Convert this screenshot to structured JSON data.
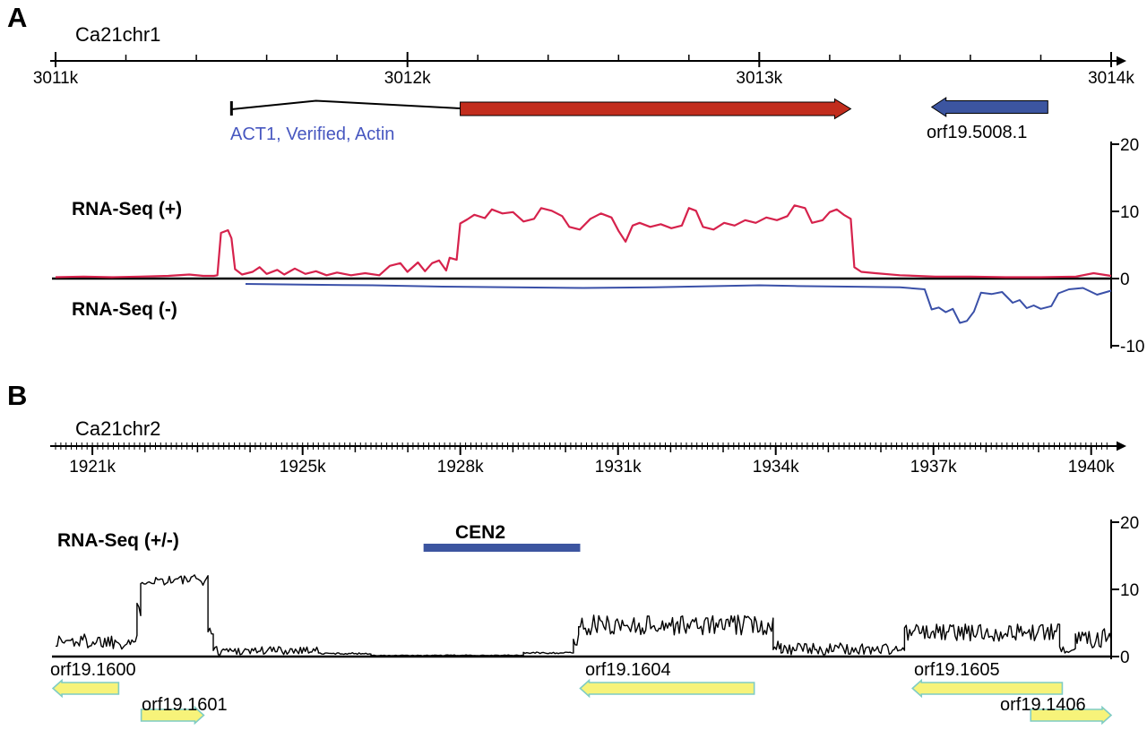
{
  "figure": {
    "panel_letters": [
      "A",
      "B"
    ],
    "background": "#ffffff"
  },
  "chart_data": [
    {
      "id": "panel_a",
      "type": "line",
      "title": "Ca21chr1",
      "x_unit": "kb",
      "xlim": [
        3011,
        3014
      ],
      "ylim": [
        -10,
        20
      ],
      "minor_tick_step_kb": 0.2,
      "x_ticks": [
        {
          "pos": 3011,
          "label": "3011k"
        },
        {
          "pos": 3012,
          "label": "3012k"
        },
        {
          "pos": 3013,
          "label": "3013k"
        },
        {
          "pos": 3014,
          "label": "3014k"
        }
      ],
      "y_ticks": [
        {
          "pos": 20,
          "label": "20"
        },
        {
          "pos": 10,
          "label": "10"
        },
        {
          "pos": 0,
          "label": "0"
        },
        {
          "pos": -10,
          "label": "-10"
        }
      ],
      "series": [
        {
          "name": "RNA-Seq (+)",
          "color": "#d6224c",
          "points": [
            [
              3011.0,
              0.2
            ],
            [
              3011.08,
              0.3
            ],
            [
              3011.16,
              0.2
            ],
            [
              3011.24,
              0.3
            ],
            [
              3011.32,
              0.4
            ],
            [
              3011.38,
              0.6
            ],
            [
              3011.42,
              0.4
            ],
            [
              3011.45,
              0.4
            ],
            [
              3011.46,
              0.5
            ],
            [
              3011.47,
              6.8
            ],
            [
              3011.49,
              7.2
            ],
            [
              3011.5,
              6.0
            ],
            [
              3011.51,
              1.4
            ],
            [
              3011.53,
              0.6
            ],
            [
              3011.56,
              1.0
            ],
            [
              3011.58,
              1.7
            ],
            [
              3011.6,
              0.7
            ],
            [
              3011.63,
              1.3
            ],
            [
              3011.65,
              0.6
            ],
            [
              3011.68,
              1.5
            ],
            [
              3011.71,
              0.7
            ],
            [
              3011.74,
              1.1
            ],
            [
              3011.77,
              0.5
            ],
            [
              3011.8,
              0.9
            ],
            [
              3011.84,
              0.5
            ],
            [
              3011.88,
              0.8
            ],
            [
              3011.92,
              0.5
            ],
            [
              3011.95,
              1.9
            ],
            [
              3011.98,
              2.3
            ],
            [
              3012.0,
              1.0
            ],
            [
              3012.03,
              2.4
            ],
            [
              3012.05,
              1.1
            ],
            [
              3012.07,
              2.3
            ],
            [
              3012.09,
              2.7
            ],
            [
              3012.11,
              1.2
            ],
            [
              3012.12,
              3.1
            ],
            [
              3012.14,
              2.8
            ],
            [
              3012.15,
              8.2
            ],
            [
              3012.17,
              8.8
            ],
            [
              3012.19,
              9.5
            ],
            [
              3012.22,
              9.0
            ],
            [
              3012.24,
              10.3
            ],
            [
              3012.27,
              9.7
            ],
            [
              3012.3,
              9.9
            ],
            [
              3012.33,
              8.5
            ],
            [
              3012.36,
              8.9
            ],
            [
              3012.38,
              10.5
            ],
            [
              3012.41,
              10.1
            ],
            [
              3012.44,
              9.3
            ],
            [
              3012.46,
              7.7
            ],
            [
              3012.49,
              7.3
            ],
            [
              3012.52,
              8.9
            ],
            [
              3012.55,
              9.7
            ],
            [
              3012.58,
              9.1
            ],
            [
              3012.6,
              7.1
            ],
            [
              3012.62,
              5.5
            ],
            [
              3012.64,
              7.9
            ],
            [
              3012.66,
              8.3
            ],
            [
              3012.69,
              7.7
            ],
            [
              3012.72,
              8.1
            ],
            [
              3012.75,
              7.5
            ],
            [
              3012.78,
              7.9
            ],
            [
              3012.8,
              10.5
            ],
            [
              3012.82,
              10.1
            ],
            [
              3012.84,
              7.7
            ],
            [
              3012.87,
              7.3
            ],
            [
              3012.9,
              8.3
            ],
            [
              3012.93,
              7.9
            ],
            [
              3012.96,
              8.7
            ],
            [
              3012.99,
              8.3
            ],
            [
              3013.02,
              9.1
            ],
            [
              3013.05,
              8.7
            ],
            [
              3013.08,
              9.3
            ],
            [
              3013.1,
              10.9
            ],
            [
              3013.13,
              10.5
            ],
            [
              3013.15,
              8.3
            ],
            [
              3013.18,
              8.7
            ],
            [
              3013.2,
              9.9
            ],
            [
              3013.22,
              10.3
            ],
            [
              3013.24,
              9.5
            ],
            [
              3013.26,
              8.9
            ],
            [
              3013.27,
              1.7
            ],
            [
              3013.29,
              1.0
            ],
            [
              3013.33,
              0.8
            ],
            [
              3013.4,
              0.5
            ],
            [
              3013.5,
              0.3
            ],
            [
              3013.6,
              0.3
            ],
            [
              3013.7,
              0.2
            ],
            [
              3013.8,
              0.2
            ],
            [
              3013.9,
              0.3
            ],
            [
              3013.95,
              0.8
            ],
            [
              3014.0,
              0.4
            ]
          ]
        },
        {
          "name": "RNA-Seq (-)",
          "color": "#3a50a8",
          "points": [
            [
              3011.54,
              -0.8
            ],
            [
              3011.7,
              -0.9
            ],
            [
              3011.9,
              -1.0
            ],
            [
              3012.1,
              -1.2
            ],
            [
              3012.3,
              -1.3
            ],
            [
              3012.5,
              -1.4
            ],
            [
              3012.7,
              -1.3
            ],
            [
              3012.9,
              -1.1
            ],
            [
              3013.0,
              -1.0
            ],
            [
              3013.1,
              -1.1
            ],
            [
              3013.25,
              -1.2
            ],
            [
              3013.4,
              -1.3
            ],
            [
              3013.47,
              -1.6
            ],
            [
              3013.49,
              -4.6
            ],
            [
              3013.51,
              -4.3
            ],
            [
              3013.53,
              -5.0
            ],
            [
              3013.55,
              -4.5
            ],
            [
              3013.57,
              -6.6
            ],
            [
              3013.59,
              -6.3
            ],
            [
              3013.61,
              -4.9
            ],
            [
              3013.63,
              -2.1
            ],
            [
              3013.66,
              -2.3
            ],
            [
              3013.69,
              -2.0
            ],
            [
              3013.72,
              -3.6
            ],
            [
              3013.74,
              -3.2
            ],
            [
              3013.76,
              -4.4
            ],
            [
              3013.78,
              -4.0
            ],
            [
              3013.8,
              -4.5
            ],
            [
              3013.83,
              -4.1
            ],
            [
              3013.85,
              -2.2
            ],
            [
              3013.88,
              -1.6
            ],
            [
              3013.92,
              -1.4
            ],
            [
              3013.96,
              -2.4
            ],
            [
              3014.0,
              -1.8
            ]
          ]
        }
      ],
      "annotations": {
        "genes": [
          {
            "label": "ACT1, Verified, Actin",
            "label_color": "#4757c0",
            "type": "cds_with_intron",
            "utr_tick_kb": 3011.5,
            "intron_apex_kb": 3011.74,
            "cds_start_kb": 3012.15,
            "cds_end_kb": 3013.26,
            "strand": "+",
            "color": "#c22d1d"
          },
          {
            "label": "orf19.5008.1",
            "label_color": "#000000",
            "type": "box_arrow",
            "start_kb": 3013.49,
            "end_kb": 3013.82,
            "strand": "-",
            "color": "#3c55a0"
          }
        ]
      }
    },
    {
      "id": "panel_b",
      "type": "line",
      "title": "Ca21chr2",
      "x_unit": "kb",
      "xlim": [
        1920.3,
        1940.38
      ],
      "ylim": [
        0,
        20
      ],
      "minor_tick_step_kb": 0.1,
      "unit_tick_step_kb": 1,
      "x_ticks": [
        {
          "pos": 1921,
          "label": "1921k"
        },
        {
          "pos": 1925,
          "label": "1925k"
        },
        {
          "pos": 1928,
          "label": "1928k"
        },
        {
          "pos": 1931,
          "label": "1931k"
        },
        {
          "pos": 1934,
          "label": "1934k"
        },
        {
          "pos": 1937,
          "label": "1937k"
        },
        {
          "pos": 1940,
          "label": "1940k"
        }
      ],
      "y_ticks": [
        {
          "pos": 20,
          "label": "20"
        },
        {
          "pos": 10,
          "label": "10"
        },
        {
          "pos": 0,
          "label": "0"
        }
      ],
      "series": [
        {
          "name": "RNA-Seq (+/-)",
          "color": "#000000",
          "segments": [
            {
              "from_kb": 1920.3,
              "to_kb": 1921.85,
              "mean": 2.3,
              "amp": 1.2
            },
            {
              "from_kb": 1921.85,
              "to_kb": 1921.92,
              "mean": 7.0,
              "amp": 1.0
            },
            {
              "from_kb": 1921.92,
              "to_kb": 1923.2,
              "mean": 11.4,
              "amp": 0.8
            },
            {
              "from_kb": 1923.2,
              "to_kb": 1923.3,
              "mean": 4.0,
              "amp": 1.0
            },
            {
              "from_kb": 1923.3,
              "to_kb": 1924.8,
              "mean": 0.9,
              "amp": 0.7
            },
            {
              "from_kb": 1924.8,
              "to_kb": 1925.3,
              "mean": 1.0,
              "amp": 0.6
            },
            {
              "from_kb": 1925.3,
              "to_kb": 1926.3,
              "mean": 0.45,
              "amp": 0.12
            },
            {
              "from_kb": 1926.3,
              "to_kb": 1927.5,
              "mean": 0.15,
              "amp": 0.06
            },
            {
              "from_kb": 1927.5,
              "to_kb": 1929.2,
              "mean": 0.18,
              "amp": 0.06
            },
            {
              "from_kb": 1929.2,
              "to_kb": 1930.15,
              "mean": 0.55,
              "amp": 0.12
            },
            {
              "from_kb": 1930.15,
              "to_kb": 1930.25,
              "mean": 2.5,
              "amp": 1.2
            },
            {
              "from_kb": 1930.25,
              "to_kb": 1933.95,
              "mean": 4.7,
              "amp": 1.5
            },
            {
              "from_kb": 1933.95,
              "to_kb": 1934.1,
              "mean": 1.8,
              "amp": 0.8
            },
            {
              "from_kb": 1934.1,
              "to_kb": 1936.45,
              "mean": 1.1,
              "amp": 0.9
            },
            {
              "from_kb": 1936.45,
              "to_kb": 1939.4,
              "mean": 3.6,
              "amp": 1.3
            },
            {
              "from_kb": 1939.4,
              "to_kb": 1939.7,
              "mean": 1.2,
              "amp": 0.7
            },
            {
              "from_kb": 1939.7,
              "to_kb": 1940.38,
              "mean": 3.0,
              "amp": 1.7
            }
          ]
        }
      ],
      "annotations": {
        "cen2": {
          "label": "CEN2",
          "start_kb": 1927.3,
          "end_kb": 1930.28,
          "color": "#3c55a0"
        },
        "gene_fill": "#f7f37a",
        "gene_stroke": "#7fccc4",
        "genes": [
          {
            "label": "orf19.1600",
            "start_kb": 1920.25,
            "end_kb": 1921.5,
            "strand": "-",
            "row": 0
          },
          {
            "label": "orf19.1601",
            "start_kb": 1921.93,
            "end_kb": 1923.12,
            "strand": "+",
            "row": 1
          },
          {
            "label": "orf19.1604",
            "start_kb": 1930.28,
            "end_kb": 1933.59,
            "strand": "-",
            "row": 0
          },
          {
            "label": "orf19.1605",
            "start_kb": 1936.6,
            "end_kb": 1939.45,
            "strand": "-",
            "row": 0
          },
          {
            "label": "orf19.1406",
            "start_kb": 1938.85,
            "end_kb": 1940.38,
            "strand": "+",
            "row": 1
          }
        ]
      }
    }
  ]
}
